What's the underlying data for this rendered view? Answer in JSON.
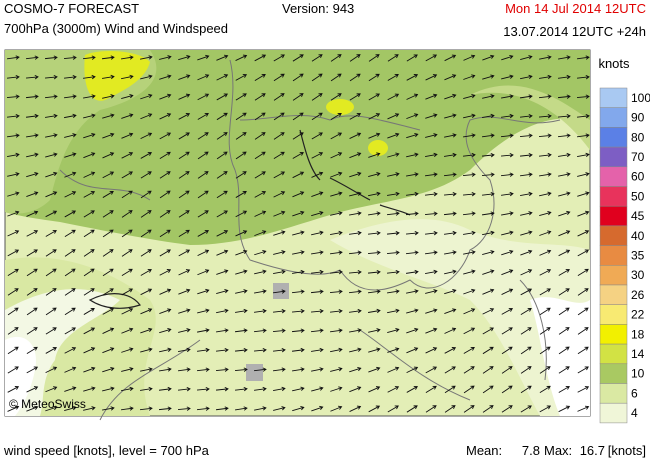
{
  "header": {
    "title": "COSMO-7 FORECAST",
    "version": "Version: 943",
    "valid_time": "Mon 14 Jul 2014 12UTC",
    "subtitle": "700hPa (3000m) Wind and Windspeed",
    "run": "13.07.2014 12UTC +24h"
  },
  "map": {
    "credit": "© MeteoSwiss"
  },
  "legend": {
    "title": "knots",
    "items": [
      {
        "label": 100,
        "color": "#a9c9f2"
      },
      {
        "label": 90,
        "color": "#82a8ec"
      },
      {
        "label": 80,
        "color": "#5b80e6"
      },
      {
        "label": 70,
        "color": "#7d5ec4"
      },
      {
        "label": 60,
        "color": "#e462aa"
      },
      {
        "label": 50,
        "color": "#e8335c"
      },
      {
        "label": 45,
        "color": "#e0001e"
      },
      {
        "label": 40,
        "color": "#d66a2e"
      },
      {
        "label": 35,
        "color": "#e88b42"
      },
      {
        "label": 30,
        "color": "#f0aa55"
      },
      {
        "label": 26,
        "color": "#f5d283"
      },
      {
        "label": 22,
        "color": "#f8ea72"
      },
      {
        "label": 18,
        "color": "#f2f000"
      },
      {
        "label": 14,
        "color": "#d2e244"
      },
      {
        "label": 10,
        "color": "#a9c962"
      },
      {
        "label": 6,
        "color": "#dae9a3"
      },
      {
        "label": 4,
        "color": "#f0f6d8"
      }
    ]
  },
  "footer": {
    "description": "wind speed [knots], level = 700 hPa",
    "mean_label": "Mean:",
    "mean": 7.8,
    "max_label": "Max:",
    "max": 16.7,
    "unit": "[knots]"
  }
}
